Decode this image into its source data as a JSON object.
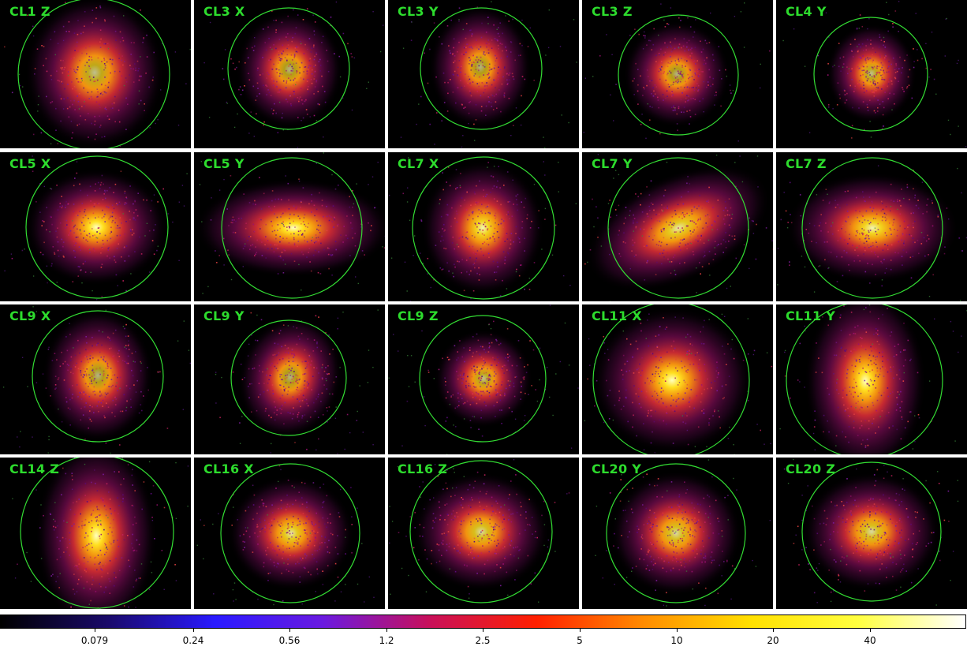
{
  "panels": [
    {
      "label": "CL1 Z"
    },
    {
      "label": "CL3 X"
    },
    {
      "label": "CL3 Y"
    },
    {
      "label": "CL3 Z"
    },
    {
      "label": "CL4 Y"
    },
    {
      "label": "CL5 X"
    },
    {
      "label": "CL5 Y"
    },
    {
      "label": "CL7 X"
    },
    {
      "label": "CL7 Y"
    },
    {
      "label": "CL7 Z"
    },
    {
      "label": "CL9 X"
    },
    {
      "label": "CL9 Y"
    },
    {
      "label": "CL9 Z"
    },
    {
      "label": "CL11 X"
    },
    {
      "label": "CL11 Y"
    },
    {
      "label": "CL14 Z"
    },
    {
      "label": "CL16 X"
    },
    {
      "label": "CL16 Z"
    },
    {
      "label": "CL20 Y"
    },
    {
      "label": "CL20 Z"
    }
  ],
  "circle_color": "#33dd33",
  "label_color": "#2ddc2d",
  "colorbar": {
    "gradient_stops": [
      "#000000",
      "#1a0a6a",
      "#2a1aff",
      "#6a1ae0",
      "#c8105a",
      "#ff2000",
      "#ff8c00",
      "#ffe000",
      "#ffff40",
      "#ffffff"
    ],
    "tick_labels": [
      "0.079",
      "0.24",
      "0.56",
      "1.2",
      "2.5",
      "5",
      "10",
      "20",
      "40"
    ]
  }
}
